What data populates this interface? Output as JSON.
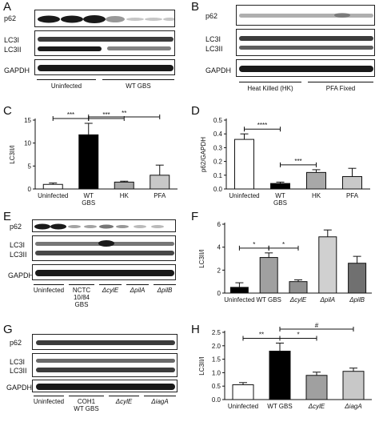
{
  "panels": {
    "A": {
      "letter": "A",
      "rows": [
        "p62",
        "LC3I",
        "LC3II",
        "GAPDH"
      ],
      "groups": [
        "Uninfected",
        "WT GBS"
      ]
    },
    "B": {
      "letter": "B",
      "rows": [
        "p62",
        "LC3I",
        "LC3II",
        "GAPDH"
      ],
      "groups": [
        "Heat Killed (HK)",
        "PFA Fixed"
      ]
    },
    "E": {
      "letter": "E",
      "rows": [
        "p62",
        "LC3I",
        "LC3II",
        "GAPDH"
      ],
      "groups": [
        "Uninfected",
        "NCTC\n10/84\nGBS",
        "ΔcylE",
        "ΔpilA",
        "ΔpilB"
      ]
    },
    "G": {
      "letter": "G",
      "rows": [
        "p62",
        "LC3I",
        "LC3II",
        "GAPDH"
      ],
      "groups": [
        "Uninfected",
        "COH1\nWT GBS",
        "ΔcylE",
        "ΔiagA"
      ]
    }
  },
  "chart_data": [
    {
      "panel": "C",
      "type": "bar",
      "categories": [
        "Uninfected",
        "WT\nGBS",
        "HK",
        "PFA"
      ],
      "values": [
        1.0,
        11.8,
        1.5,
        3.0
      ],
      "errors": [
        0.3,
        2.5,
        0.2,
        2.2
      ],
      "colors": [
        "#ffffff",
        "#000000",
        "#a8a8a8",
        "#c8c8c8"
      ],
      "ylabel": "LC3II/I",
      "ylim": [
        0,
        15
      ],
      "yticks": [
        0,
        5,
        10,
        15
      ],
      "significance": [
        {
          "from": 0,
          "to": 1,
          "label": "***"
        },
        {
          "from": 1,
          "to": 2,
          "label": "***"
        },
        {
          "from": 1,
          "to": 3,
          "label": "**"
        }
      ]
    },
    {
      "panel": "D",
      "type": "bar",
      "categories": [
        "Uninfected",
        "WT\nGBS",
        "HK",
        "PFA"
      ],
      "values": [
        0.36,
        0.04,
        0.12,
        0.09
      ],
      "errors": [
        0.04,
        0.01,
        0.02,
        0.06
      ],
      "colors": [
        "#ffffff",
        "#000000",
        "#a8a8a8",
        "#c8c8c8"
      ],
      "ylabel": "p62/GAPDH",
      "ylim": [
        0,
        0.5
      ],
      "yticks": [
        0.0,
        0.1,
        0.2,
        0.3,
        0.4,
        0.5
      ],
      "significance": [
        {
          "from": 0,
          "to": 1,
          "label": "****"
        },
        {
          "from": 1,
          "to": 2,
          "label": "***"
        }
      ]
    },
    {
      "panel": "F",
      "type": "bar",
      "categories": [
        "Uninfected",
        "WT GBS",
        "ΔcylE",
        "ΔpilA",
        "ΔpilB"
      ],
      "values": [
        0.5,
        3.1,
        1.0,
        4.9,
        2.6
      ],
      "errors": [
        0.4,
        0.4,
        0.15,
        0.6,
        0.6
      ],
      "colors": [
        "#000000",
        "#a0a0a0",
        "#909090",
        "#d0d0d0",
        "#707070"
      ],
      "ylabel": "LC3II/I",
      "ylim": [
        0,
        6
      ],
      "yticks": [
        0,
        2,
        4,
        6
      ],
      "significance": [
        {
          "from": 0,
          "to": 1,
          "label": "*"
        },
        {
          "from": 1,
          "to": 2,
          "label": "*"
        }
      ]
    },
    {
      "panel": "H",
      "type": "bar",
      "categories": [
        "Uninfected",
        "WT GBS",
        "ΔcylE",
        "ΔiagA"
      ],
      "values": [
        0.55,
        1.8,
        0.9,
        1.05
      ],
      "errors": [
        0.08,
        0.3,
        0.12,
        0.12
      ],
      "colors": [
        "#ffffff",
        "#000000",
        "#a0a0a0",
        "#c8c8c8"
      ],
      "ylabel": "LC3II/I",
      "ylim": [
        0,
        2.5
      ],
      "yticks": [
        0.0,
        0.5,
        1.0,
        1.5,
        2.0,
        2.5
      ],
      "significance": [
        {
          "from": 0,
          "to": 1,
          "label": "**"
        },
        {
          "from": 1,
          "to": 2,
          "label": "*"
        },
        {
          "from": 1,
          "to": 3,
          "label": "#"
        }
      ]
    }
  ]
}
